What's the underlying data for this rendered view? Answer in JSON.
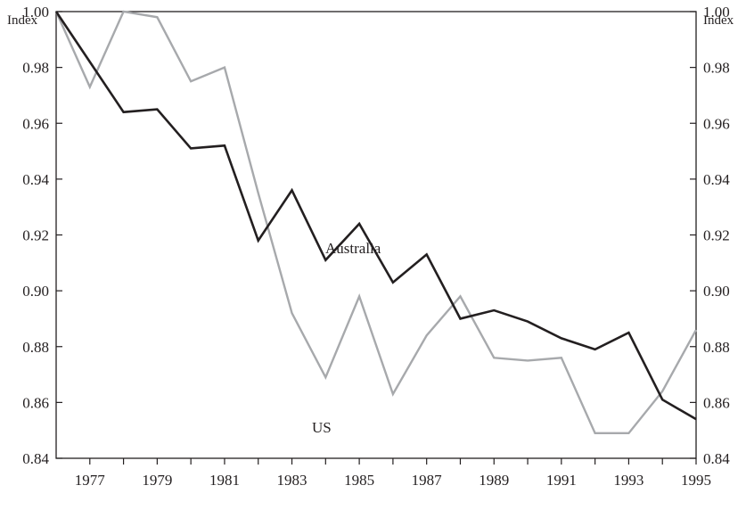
{
  "chart_data": {
    "type": "line",
    "title": "",
    "ylabel_left": "Index",
    "ylabel_right": "Index",
    "ylim": [
      0.84,
      1.0
    ],
    "yticks": [
      0.84,
      0.86,
      0.88,
      0.9,
      0.92,
      0.94,
      0.96,
      0.98,
      1.0
    ],
    "ytick_labels": [
      "0.84",
      "0.86",
      "0.88",
      "0.90",
      "0.92",
      "0.94",
      "0.96",
      "0.98",
      "1.00"
    ],
    "xlim": [
      1976,
      1995
    ],
    "xtick_labels": [
      "1977",
      "1979",
      "1981",
      "1983",
      "1985",
      "1987",
      "1989",
      "1991",
      "1993",
      "1995"
    ],
    "grid": false,
    "x": [
      1976,
      1977,
      1978,
      1979,
      1980,
      1981,
      1982,
      1983,
      1984,
      1985,
      1986,
      1987,
      1988,
      1989,
      1990,
      1991,
      1992,
      1993,
      1994,
      1995
    ],
    "series": [
      {
        "name": "Australia",
        "color": "#231f20",
        "values": [
          1.0,
          0.982,
          0.964,
          0.965,
          0.951,
          0.952,
          0.918,
          0.936,
          0.911,
          0.924,
          0.903,
          0.913,
          0.89,
          0.893,
          0.889,
          0.883,
          0.879,
          0.885,
          0.861,
          0.854
        ]
      },
      {
        "name": "US",
        "color": "#a7a9ac",
        "values": [
          1.0,
          0.973,
          1.0,
          0.998,
          0.975,
          0.98,
          0.935,
          0.892,
          0.869,
          0.898,
          0.863,
          0.884,
          0.898,
          0.876,
          0.875,
          0.876,
          0.849,
          0.849,
          0.864,
          0.886
        ]
      }
    ]
  }
}
